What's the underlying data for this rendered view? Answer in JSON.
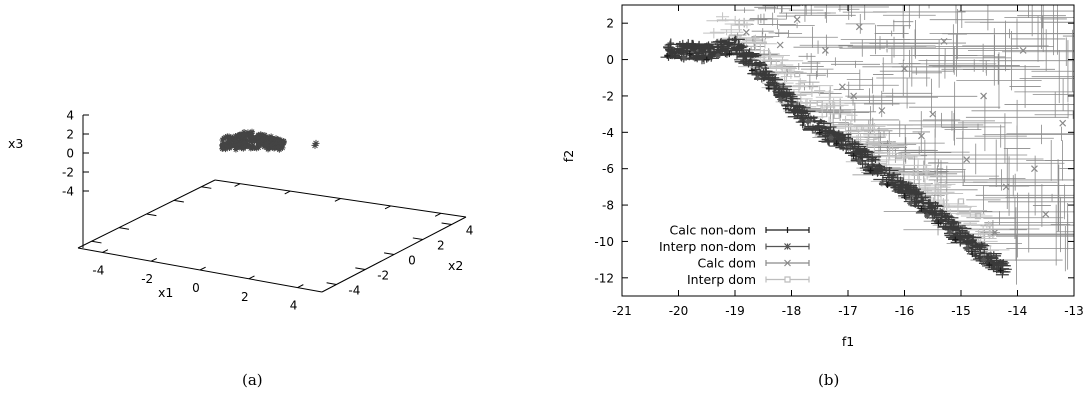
{
  "chart_data": [
    {
      "panel": "a",
      "type": "scatter",
      "caption": "(a)",
      "xlabel": "x1",
      "ylabel": "x2",
      "zlabel": "x3",
      "x_ticks": [
        -4,
        -2,
        0,
        2,
        4
      ],
      "y_ticks": [
        -4,
        -2,
        0,
        2,
        4
      ],
      "z_ticks": [
        -4,
        -2,
        0,
        2,
        4
      ],
      "xlim": [
        -5,
        5
      ],
      "ylim": [
        -5,
        5
      ],
      "zlim": [
        -5,
        5
      ],
      "color": "#444444",
      "cluster": {
        "x1_range": [
          -1.5,
          0.5
        ],
        "x2_range": [
          1.0,
          4.0
        ],
        "x3_range": [
          -0.3,
          2.3
        ]
      },
      "outlier": {
        "x1": 2.5,
        "x2": 4.3,
        "x3": 0.8
      }
    },
    {
      "panel": "b",
      "type": "scatter",
      "caption": "(b)",
      "xlabel": "f1",
      "ylabel": "f2",
      "xlim": [
        -21,
        -13
      ],
      "ylim": [
        -13,
        3
      ],
      "x_ticks": [
        -21,
        -20,
        -19,
        -18,
        -17,
        -16,
        -15,
        -14,
        -13
      ],
      "y_ticks": [
        -12,
        -10,
        -8,
        -6,
        -4,
        -2,
        0,
        2
      ],
      "legend_position": "bottom-left",
      "series": [
        {
          "name": "Calc non-dom",
          "color": "#1a1a1a",
          "marker": "plus",
          "x": [
            -20.2,
            -19.8,
            -19.5,
            -19.1,
            -18.7,
            -18.4,
            -18.1,
            -17.8,
            -17.5,
            -17.2,
            -16.9,
            -16.6,
            -16.3,
            -16.0,
            -15.7,
            -15.4,
            -15.1,
            -14.8,
            -14.5,
            -14.3
          ],
          "y": [
            0.2,
            0.3,
            0.0,
            0.3,
            -0.6,
            -1.6,
            -2.7,
            -3.6,
            -4.0,
            -4.6,
            -5.3,
            -6.1,
            -6.9,
            -7.5,
            -8.2,
            -9.0,
            -9.9,
            -10.7,
            -11.3,
            -11.6
          ]
        },
        {
          "name": "Interp non-dom",
          "color": "#555555",
          "marker": "star",
          "x": [
            -19.9,
            -19.3,
            -18.6,
            -18.2,
            -17.7,
            -17.3,
            -16.8,
            -16.4,
            -15.9,
            -15.6,
            -15.2,
            -14.9,
            -14.6
          ],
          "y": [
            0.1,
            0.2,
            -1.0,
            -2.2,
            -3.4,
            -4.3,
            -5.6,
            -6.8,
            -7.9,
            -8.6,
            -9.5,
            -10.4,
            -11.0
          ]
        },
        {
          "name": "Calc dom",
          "color": "#8a8a8a",
          "marker": "cross",
          "x": [
            -18.8,
            -18.2,
            -17.9,
            -17.4,
            -17.1,
            -16.8,
            -16.4,
            -16.0,
            -15.7,
            -15.3,
            -14.9,
            -14.6,
            -14.2,
            -13.9,
            -13.5,
            -13.2,
            -16.9,
            -15.5,
            -14.4,
            -13.7
          ],
          "y": [
            1.5,
            0.8,
            2.2,
            0.5,
            -1.5,
            1.8,
            -2.8,
            -0.5,
            -4.2,
            1.0,
            -5.5,
            -2.0,
            -7.0,
            0.5,
            -8.5,
            -3.5,
            -2.0,
            -3.0,
            -9.5,
            -6.0
          ]
        },
        {
          "name": "Interp dom",
          "color": "#bdbdbd",
          "marker": "square",
          "x": [
            -19.2,
            -18.7,
            -18.3,
            -17.9,
            -17.5,
            -17.2,
            -16.8,
            -16.5,
            -16.1,
            -15.8,
            -15.4,
            -15.0,
            -14.7
          ],
          "y": [
            0.8,
            0.2,
            -1.2,
            -0.8,
            -2.4,
            -3.1,
            -3.8,
            -4.5,
            -5.3,
            -6.2,
            -7.0,
            -7.8,
            -8.6
          ]
        }
      ]
    }
  ]
}
